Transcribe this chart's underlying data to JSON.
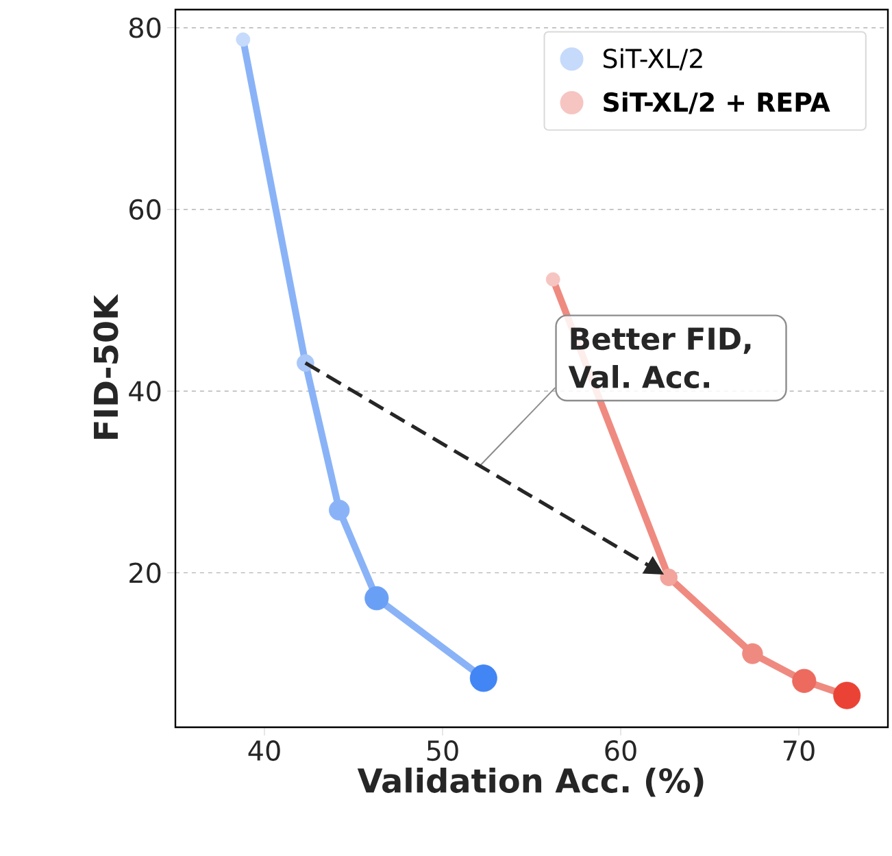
{
  "chart_data": {
    "type": "line",
    "xlabel": "Validation Acc. (%)",
    "ylabel": "FID-50K",
    "xlim": [
      35,
      75
    ],
    "xticks": [
      40,
      50,
      60,
      70
    ],
    "ylim": [
      3,
      82
    ],
    "yticks": [
      20,
      40,
      60,
      80
    ],
    "grid": "y",
    "legend": "top right",
    "marker": "circle",
    "line_style": "solid",
    "annotations": [
      "Better FID, Val. Acc."
    ],
    "series": [
      {
        "name": "SiT-XL/2",
        "color": "#8ab3f7",
        "colors": [
          "#c6dafb",
          "#a9c7f8",
          "#8ab3f7",
          "#6a9ff6",
          "#4285f4"
        ],
        "x": [
          38.8,
          42.3,
          44.2,
          46.3,
          52.3
        ],
        "values": [
          78.7,
          43.1,
          26.9,
          17.2,
          8.4
        ]
      },
      {
        "name": "SiT-XL/2 + REPA",
        "color": "#ef8a80",
        "colors": [
          "#f6c5c1",
          "#f2a49d",
          "#ef8a80",
          "#ec6a5e",
          "#ea4335"
        ],
        "x": [
          56.2,
          62.7,
          67.4,
          70.3,
          72.7
        ],
        "values": [
          52.3,
          19.5,
          11.1,
          8.1,
          6.5
        ]
      }
    ]
  }
}
